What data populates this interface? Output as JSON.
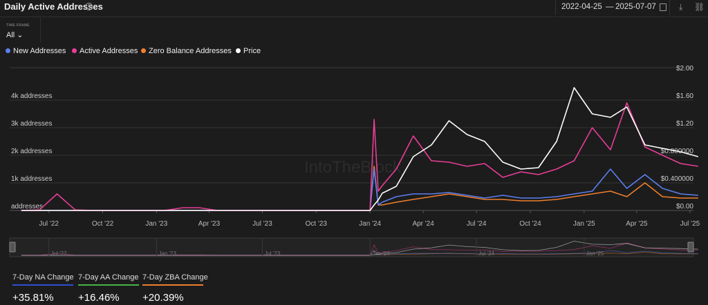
{
  "header": {
    "title": "Daily Active Addresses",
    "date_from": "2022-04-25",
    "date_sep": "—",
    "date_to": "2025-07-07"
  },
  "timeframe": {
    "label": "TIME FRAME",
    "value": "All"
  },
  "colors": {
    "new": "#5b7ff0",
    "active": "#e83e96",
    "zero": "#f07f2e",
    "price": "#ffffff",
    "aa_bar": "#44b54a"
  },
  "chart_data": {
    "type": "line",
    "title": "",
    "x": [
      "2022-05",
      "2022-06",
      "2022-07",
      "2022-08",
      "2022-09",
      "2022-10",
      "2022-11",
      "2022-12",
      "2023-01",
      "2023-02",
      "2023-03",
      "2023-04",
      "2023-05",
      "2023-06",
      "2023-07",
      "2023-08",
      "2023-09",
      "2023-10",
      "2023-11",
      "2023-12",
      "2024-01-01",
      "2024-01-08",
      "2024-01-15",
      "2024-01-22",
      "2024-02",
      "2024-03",
      "2024-04",
      "2024-05",
      "2024-06",
      "2024-07",
      "2024-08",
      "2024-09",
      "2024-10",
      "2024-11",
      "2024-12",
      "2025-01",
      "2025-02",
      "2025-03",
      "2025-04",
      "2025-05",
      "2025-06",
      "2025-07"
    ],
    "x_ticks": [
      "Jul '22",
      "Oct '22",
      "Jan '23",
      "Apr '23",
      "Jul '23",
      "Oct '23",
      "Jan '24",
      "Apr '24",
      "Jul '24",
      "Oct '24",
      "Jan '25",
      "Apr '25",
      "Jul '25"
    ],
    "y_left_ticks": [
      "addresses",
      "1k addresses",
      "2k addresses",
      "3k addresses",
      "4k addresses"
    ],
    "y_right_ticks": [
      "$0.00",
      "$0.400000",
      "$0.800000",
      "$1.20",
      "$1.60",
      "$2.00"
    ],
    "ylim_left": [
      0,
      5000
    ],
    "ylim_right": [
      0,
      2.0
    ],
    "series": [
      {
        "name": "New Addresses",
        "axis": "left",
        "values": [
          0,
          0,
          0,
          0,
          0,
          0,
          0,
          0,
          0,
          0,
          0,
          0,
          0,
          0,
          0,
          0,
          0,
          0,
          0,
          0,
          0,
          1500,
          200,
          300,
          500,
          600,
          600,
          650,
          550,
          450,
          550,
          450,
          450,
          500,
          600,
          700,
          1500,
          800,
          1300,
          800,
          600,
          550
        ]
      },
      {
        "name": "Active Addresses",
        "axis": "left",
        "values": [
          0,
          20,
          600,
          20,
          0,
          0,
          0,
          0,
          0,
          100,
          100,
          0,
          0,
          0,
          0,
          0,
          0,
          0,
          0,
          0,
          0,
          3300,
          700,
          900,
          1500,
          2700,
          1800,
          1750,
          1600,
          1700,
          1200,
          1400,
          1300,
          1500,
          1800,
          3000,
          2200,
          3900,
          2300,
          2000,
          1700,
          1600
        ]
      },
      {
        "name": "Zero Balance Addresses",
        "axis": "left",
        "values": [
          0,
          0,
          0,
          0,
          0,
          0,
          0,
          0,
          0,
          0,
          0,
          0,
          0,
          0,
          0,
          0,
          0,
          0,
          0,
          0,
          0,
          1600,
          200,
          200,
          300,
          400,
          500,
          600,
          500,
          400,
          400,
          350,
          350,
          400,
          500,
          600,
          700,
          500,
          1000,
          500,
          450,
          450
        ]
      },
      {
        "name": "Price",
        "axis": "right",
        "values": [
          0,
          0,
          0,
          0,
          0,
          0,
          0,
          0,
          0,
          0,
          0,
          0,
          0,
          0,
          0,
          0,
          0,
          0,
          0,
          0,
          0,
          0.08,
          0.15,
          0.25,
          0.35,
          0.78,
          0.95,
          1.3,
          1.1,
          1.0,
          0.7,
          0.6,
          0.62,
          1.0,
          1.78,
          1.4,
          1.35,
          1.5,
          0.95,
          0.9,
          0.85,
          0.78
        ]
      }
    ],
    "legend_position": "top-left"
  },
  "navigator": {
    "ticks": [
      "Jul '22",
      "Jan '23",
      "Jul '23",
      "Jan '24",
      "Jul '24",
      "Jan '25"
    ]
  },
  "stats": [
    {
      "label": "7-Day NA Change",
      "value": "+35.81%",
      "color": "#2f4fd6"
    },
    {
      "label": "7-Day AA Change",
      "value": "+16.46%",
      "color": "#44b54a"
    },
    {
      "label": "7-Day ZBA Change",
      "value": "+20.39%",
      "color": "#f07f2e"
    }
  ],
  "watermark": "IntoTheBlock"
}
